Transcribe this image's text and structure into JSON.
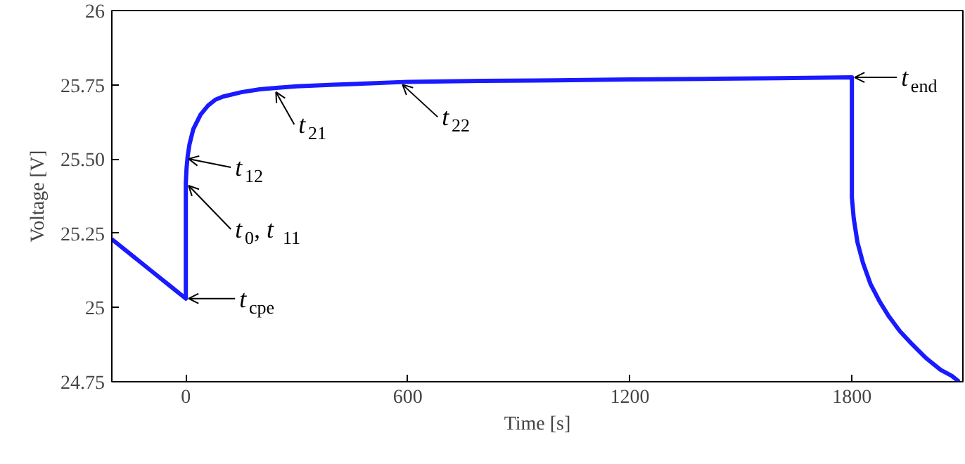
{
  "chart_data": {
    "type": "line",
    "xlabel": "Time [s]",
    "ylabel": "Voltage [V]",
    "xlim": [
      -200,
      2100
    ],
    "xticks": [
      0,
      600,
      1200,
      1800
    ],
    "ylim": [
      24.75,
      26
    ],
    "yticks": [
      24.75,
      25,
      25.25,
      {
        "value": 25.5,
        "label": "25.50"
      },
      25.75,
      26
    ],
    "grid": false,
    "marker": "none",
    "line_style": "solid",
    "series": [
      {
        "color": "#1a1aff",
        "x": [
          -200,
          -150,
          -100,
          -50,
          0,
          0,
          2,
          5,
          10,
          20,
          40,
          60,
          80,
          100,
          150,
          200,
          250,
          300,
          400,
          500,
          600,
          800,
          1000,
          1200,
          1400,
          1600,
          1800,
          1800,
          1805,
          1815,
          1830,
          1850,
          1875,
          1900,
          1930,
          1960,
          2000,
          2040,
          2070,
          2090
        ],
        "values": [
          25.23,
          25.18,
          25.13,
          25.08,
          25.03,
          25.42,
          25.47,
          25.51,
          25.55,
          25.6,
          25.65,
          25.68,
          25.7,
          25.71,
          25.725,
          25.735,
          25.74,
          25.745,
          25.75,
          25.755,
          25.76,
          25.763,
          25.765,
          25.768,
          25.77,
          25.772,
          25.775,
          25.37,
          25.3,
          25.22,
          25.15,
          25.08,
          25.02,
          24.97,
          24.92,
          24.88,
          24.83,
          24.79,
          24.77,
          24.75
        ]
      }
    ],
    "annotations": [
      {
        "text": "t$_{cpe}$",
        "x": 0,
        "y": 25.03
      },
      {
        "text": "t$_{0}$, t$_{11}$",
        "x": 0,
        "y": 25.42
      },
      {
        "text": "t$_{12}$",
        "x": 0,
        "y": 25.51
      },
      {
        "text": "t$_{21}$",
        "x": 236,
        "y": 25.735
      },
      {
        "text": "t$_{22}$",
        "x": 578,
        "y": 25.76
      },
      {
        "text": "t$_{end}$",
        "x": 1800,
        "y": 25.775
      }
    ]
  }
}
